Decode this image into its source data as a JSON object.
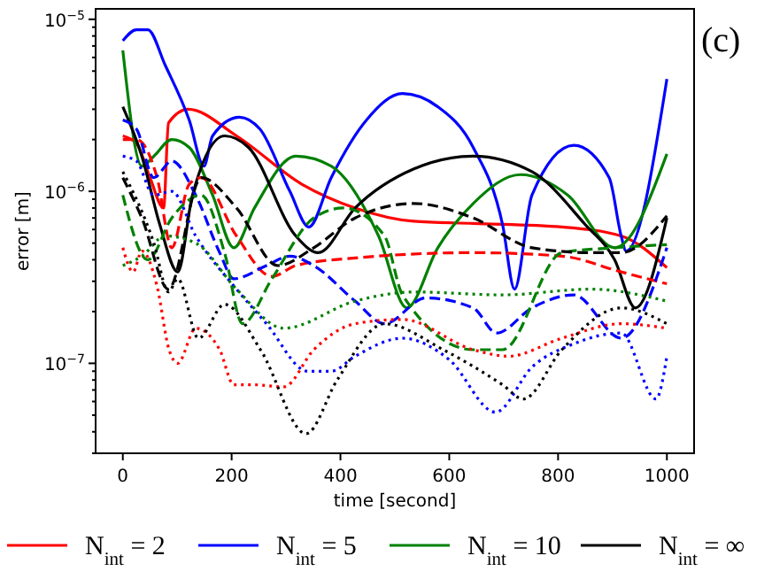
{
  "chart_data": {
    "type": "line",
    "xlabel": "time [second]",
    "ylabel": "error [m]",
    "annotations": [
      "(c)"
    ],
    "log": "y",
    "grid": false,
    "legend": "bottom",
    "xlim": [
      -50,
      1050
    ],
    "xticks": [
      0,
      200,
      400,
      600,
      800,
      1000
    ],
    "ylim": [
      3e-08,
      1.15e-05
    ],
    "yticks": [
      {
        "value": 3e-08,
        "label": null
      },
      {
        "value": 4e-08,
        "label": null
      },
      {
        "value": 5e-08,
        "label": null
      },
      {
        "value": 6e-08,
        "label": null
      },
      {
        "value": 7e-08,
        "label": null
      },
      {
        "value": 8e-08,
        "label": null
      },
      {
        "value": 9e-08,
        "label": null
      },
      {
        "value": 1e-07,
        "label": "10$^{−7}$"
      },
      {
        "value": 2e-07,
        "label": null
      },
      {
        "value": 3e-07,
        "label": null
      },
      {
        "value": 4e-07,
        "label": null
      },
      {
        "value": 5e-07,
        "label": null
      },
      {
        "value": 6e-07,
        "label": null
      },
      {
        "value": 7e-07,
        "label": null
      },
      {
        "value": 8e-07,
        "label": null
      },
      {
        "value": 9e-07,
        "label": null
      },
      {
        "value": 1e-06,
        "label": "10$^{−6}$"
      },
      {
        "value": 2e-06,
        "label": null
      },
      {
        "value": 3e-06,
        "label": null
      },
      {
        "value": 4e-06,
        "label": null
      },
      {
        "value": 5e-06,
        "label": null
      },
      {
        "value": 6e-06,
        "label": null
      },
      {
        "value": 7e-06,
        "label": null
      },
      {
        "value": 8e-06,
        "label": null
      },
      {
        "value": 9e-06,
        "label": null
      },
      {
        "value": 1e-05,
        "label": "10$^{−5}$"
      }
    ],
    "series": [
      {
        "name": "N$_{int}$ = 2",
        "color": "#ff0000",
        "line_style": "solid",
        "x": [
          0,
          25,
          50,
          75,
          84,
          120,
          209,
          329,
          427,
          535,
          644,
          807,
          916,
          1000
        ],
        "values": [
          2.1e-06,
          1.9e-06,
          1.2e-06,
          8e-07,
          2.5e-06,
          3e-06,
          2.1e-06,
          1.1e-06,
          8e-07,
          6.7e-07,
          6.5e-07,
          6.2e-07,
          5.5e-07,
          3.6e-07
        ]
      },
      {
        "name": "N$_{int}$ = 5",
        "color": "#0000ff",
        "line_style": "solid",
        "x": [
          0,
          25,
          46,
          78,
          122,
          149,
          165,
          214,
          252,
          307,
          342,
          383,
          448,
          514,
          579,
          644,
          698,
          720,
          752,
          829,
          894,
          916,
          925,
          1000
        ],
        "values": [
          7.5e-06,
          8.7e-06,
          8.7e-06,
          5.4e-06,
          2.6e-06,
          1.4e-06,
          2.1e-06,
          2.7e-06,
          2.3e-06,
          1e-06,
          6.2e-07,
          1.2e-06,
          2.6e-06,
          3.7e-06,
          3.1e-06,
          1.8e-06,
          6.4e-07,
          2.7e-07,
          9.5e-07,
          1.85e-06,
          1.2e-06,
          5.5e-07,
          4.5e-07,
          4.5e-06
        ]
      },
      {
        "name": "N$_{int}$ = 10",
        "color": "#008000",
        "line_style": "solid",
        "x": [
          0,
          35,
          57,
          90,
          122,
          165,
          204,
          242,
          318,
          383,
          470,
          522,
          579,
          644,
          731,
          818,
          904,
          1000
        ],
        "values": [
          6.6e-06,
          1.4e-06,
          1.6e-06,
          2e-06,
          1.8e-06,
          9.5e-07,
          4.7e-07,
          8e-07,
          1.6e-06,
          1.4e-06,
          5.5e-07,
          2.1e-07,
          4.7e-07,
          8.5e-07,
          1.25e-06,
          9.5e-07,
          4.7e-07,
          1.65e-06
        ]
      },
      {
        "name": "N$_{int}$ = ∞",
        "color": "#000000",
        "line_style": "solid",
        "x": [
          0,
          35,
          68,
          101,
          128,
          187,
          231,
          318,
          359,
          427,
          535,
          644,
          752,
          850,
          904,
          942,
          1000
        ],
        "values": [
          3.1e-06,
          1.6e-06,
          6.4e-07,
          3.4e-07,
          9.5e-07,
          2.1e-06,
          1.8e-06,
          5.5e-07,
          4.4e-07,
          8e-07,
          1.35e-06,
          1.6e-06,
          1.3e-06,
          6.4e-07,
          4e-07,
          2.1e-07,
          7e-07
        ]
      },
      {
        "color": "#ff0000",
        "line_style": "dashed",
        "x": [
          0,
          25,
          63,
          90,
          122,
          144,
          209,
          274,
          318,
          427,
          644,
          807,
          916,
          1000
        ],
        "values": [
          2e-06,
          2e-06,
          1.2e-06,
          4.7e-07,
          1.1e-06,
          1.2e-06,
          5.5e-07,
          3.2e-07,
          3.7e-07,
          4.1e-07,
          4.4e-07,
          4.2e-07,
          3.4e-07,
          2.9e-07
        ]
      },
      {
        "color": "#0000ff",
        "line_style": "dashed",
        "x": [
          0,
          25,
          57,
          90,
          134,
          178,
          204,
          264,
          307,
          351,
          427,
          481,
          557,
          644,
          687,
          752,
          829,
          916,
          1000
        ],
        "values": [
          2.6e-06,
          2.3e-06,
          1.2e-06,
          1.5e-06,
          9.5e-07,
          4.4e-07,
          3.1e-07,
          3.7e-07,
          4.2e-07,
          3.7e-07,
          2.3e-07,
          1.7e-07,
          2.4e-07,
          2.1e-07,
          1.5e-07,
          2.1e-07,
          2.5e-07,
          1.4e-07,
          4.7e-07
        ]
      },
      {
        "color": "#008000",
        "line_style": "dashed",
        "x": [
          0,
          46,
          90,
          144,
          187,
          220,
          274,
          351,
          405,
          481,
          514,
          644,
          698,
          807,
          904,
          1000
        ],
        "values": [
          9.5e-07,
          4e-07,
          7e-07,
          9.5e-07,
          4.4e-07,
          1.7e-07,
          3.1e-07,
          7e-07,
          8e-07,
          5.5e-07,
          2.5e-07,
          1.2e-07,
          1.2e-07,
          4.4e-07,
          4.7e-07,
          4.9e-07
        ]
      },
      {
        "color": "#000000",
        "line_style": "dashed",
        "x": [
          0,
          35,
          84,
          144,
          209,
          285,
          351,
          427,
          535,
          644,
          752,
          861,
          916,
          1000
        ],
        "values": [
          1.2e-06,
          7e-07,
          2.7e-07,
          1.2e-06,
          8e-07,
          3.7e-07,
          4.7e-07,
          7e-07,
          8.5e-07,
          7e-07,
          4.7e-07,
          4.4e-07,
          4.4e-07,
          7.2e-07
        ]
      },
      {
        "color": "#ff0000",
        "line_style": "dotted",
        "x": [
          0,
          19,
          35,
          63,
          85,
          101,
          134,
          178,
          204,
          242,
          296,
          351,
          427,
          514,
          644,
          709,
          807,
          916,
          1000
        ],
        "values": [
          4.7e-07,
          3.4e-07,
          4.5e-07,
          2.8e-07,
          1.2e-07,
          1e-07,
          1.6e-07,
          1.2e-07,
          7.5e-08,
          7.5e-08,
          7.3e-08,
          1.2e-07,
          1.7e-07,
          1.8e-07,
          1.2e-07,
          1.1e-07,
          1.4e-07,
          1.7e-07,
          1.6e-07
        ]
      },
      {
        "color": "#0000ff",
        "line_style": "dotted",
        "x": [
          0,
          25,
          57,
          90,
          134,
          209,
          264,
          340,
          383,
          427,
          514,
          600,
          685,
          752,
          829,
          916,
          980,
          1000
        ],
        "values": [
          1.6e-06,
          1.5e-06,
          9.5e-07,
          1e-06,
          5.5e-07,
          2.7e-07,
          1.7e-07,
          9e-08,
          9e-08,
          1.1e-07,
          1.4e-07,
          1.05e-07,
          5.2e-08,
          9.5e-08,
          1.3e-07,
          1.5e-07,
          6.2e-08,
          1.1e-07
        ]
      },
      {
        "color": "#008000",
        "line_style": "dotted",
        "x": [
          0,
          35,
          78,
          134,
          209,
          296,
          427,
          535,
          698,
          861,
          1000
        ],
        "values": [
          3.7e-07,
          4.2e-07,
          5.5e-07,
          5e-07,
          2.7e-07,
          1.6e-07,
          2.3e-07,
          2.6e-07,
          2.5e-07,
          2.7e-07,
          2.3e-07
        ]
      },
      {
        "color": "#000000",
        "line_style": "dotted",
        "x": [
          0,
          57,
          84,
          101,
          139,
          187,
          253,
          337,
          394,
          481,
          589,
          698,
          736,
          807,
          916,
          1000
        ],
        "values": [
          1.3e-06,
          5e-07,
          2.6e-07,
          3.1e-07,
          1.4e-07,
          2.2e-07,
          1.2e-07,
          3.9e-08,
          8e-08,
          1.7e-07,
          1.2e-07,
          7.5e-08,
          6.2e-08,
          1.2e-07,
          2.1e-07,
          1.7e-07
        ]
      }
    ]
  }
}
